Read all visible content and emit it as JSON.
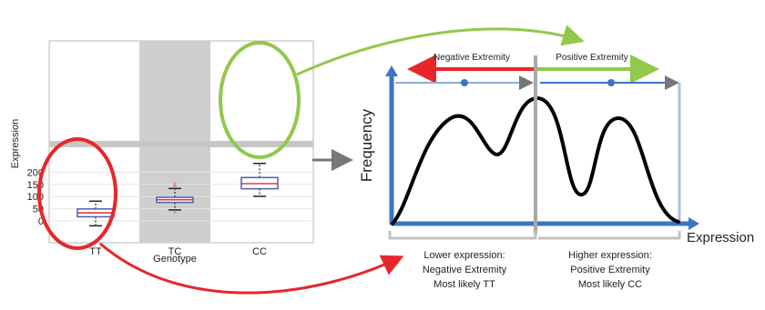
{
  "boxplot": {
    "ylabel": "Expression",
    "xlabel": "Genotype",
    "yticks": [
      "200",
      "150",
      "100",
      "50",
      "0"
    ],
    "categories": [
      "TT",
      "TC",
      "CC"
    ]
  },
  "density": {
    "ylabel": "Frequency",
    "xlabel": "Expression",
    "negative_label": "Negative Extremity",
    "positive_label": "Positive Extremity",
    "lower_caption": [
      "Lower expression:",
      "Negative Extremity",
      "Most likely TT"
    ],
    "higher_caption": [
      "Higher expression:",
      "Positive Extremity",
      "Most likely CC"
    ]
  },
  "colors": {
    "red": "#e8262a",
    "green": "#92c84b",
    "blue": "#3a75c4",
    "light_blue": "#8aaed8",
    "grey_band": "#cfcfcf",
    "box_blue": "#4b5fae",
    "median_red": "#e23a3a"
  },
  "chart_data": {
    "type": "boxplot",
    "xlabel": "Genotype",
    "ylabel": "Expression",
    "ylim": [
      -25,
      245
    ],
    "groups": [
      {
        "name": "TT",
        "min": -20,
        "q1": 17,
        "median": 33,
        "q3": 49,
        "max": 81,
        "outliers": []
      },
      {
        "name": "TC",
        "min": 45,
        "q1": 76,
        "median": 87,
        "q3": 97,
        "max": 133,
        "outliers": [
          37,
          140,
          145,
          150,
          155
        ]
      },
      {
        "name": "CC",
        "min": 101,
        "q1": 132,
        "median": 153,
        "q3": 178,
        "max": 236,
        "outliers": []
      }
    ]
  }
}
